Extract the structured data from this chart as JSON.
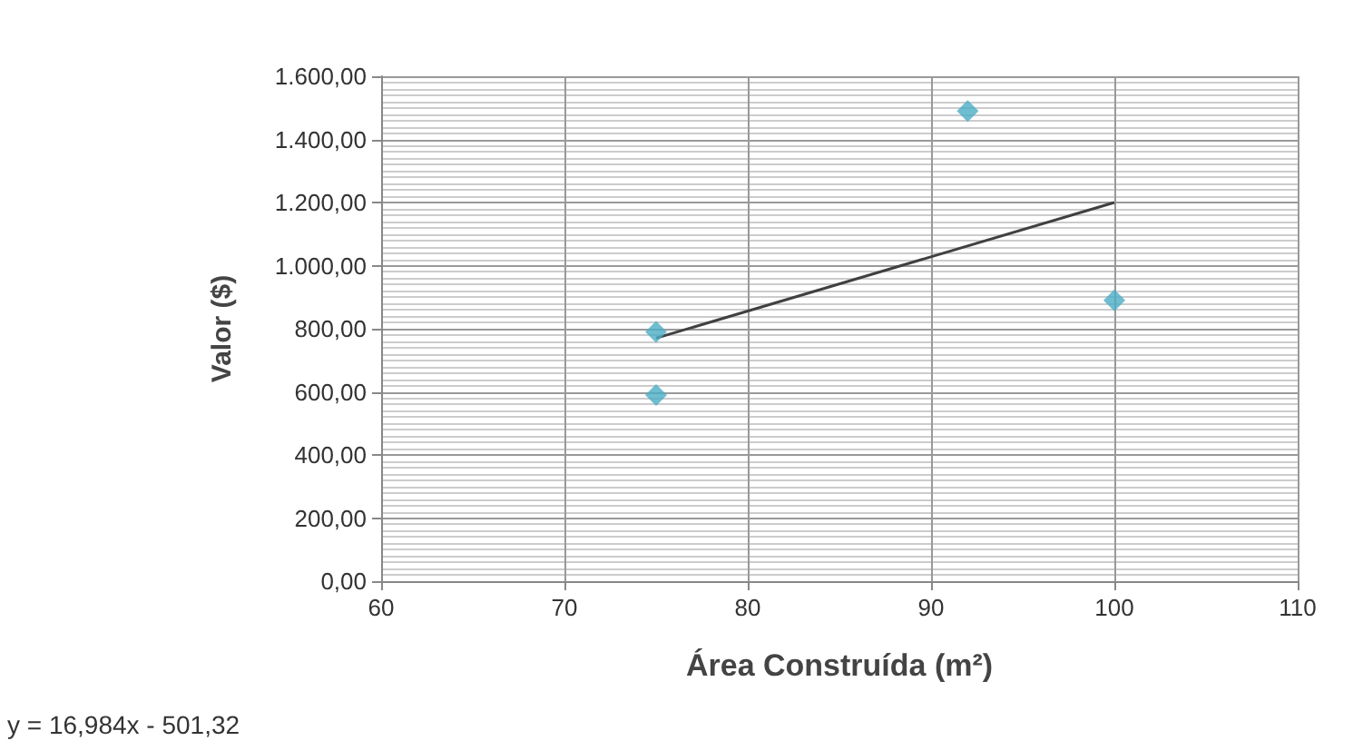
{
  "chart_data": {
    "type": "scatter",
    "xlabel": "Área Construída (m²)",
    "ylabel": "Valor ($)",
    "xlim": [
      60,
      110
    ],
    "xticks": [
      60,
      70,
      80,
      90,
      100,
      110
    ],
    "ylim": [
      0,
      1600
    ],
    "yticks": [
      {
        "value": 0,
        "label": "0,00"
      },
      {
        "value": 200,
        "label": "200,00"
      },
      {
        "value": 400,
        "label": "400,00"
      },
      {
        "value": 600,
        "label": "600,00"
      },
      {
        "value": 800,
        "label": "800,00"
      },
      {
        "value": 1000,
        "label": "1.000,00"
      },
      {
        "value": 1200,
        "label": "1.200,00"
      },
      {
        "value": 1400,
        "label": "1.400,00"
      },
      {
        "value": 1600,
        "label": "1.600,00"
      }
    ],
    "grid": true,
    "series": [
      {
        "marker": "diamond",
        "color": "#4bacc6",
        "x": [
          75,
          75,
          92,
          100
        ],
        "values": [
          790,
          590,
          1490,
          890
        ]
      },
      {
        "type": "line",
        "marker": "none",
        "color": "#404040",
        "x": [
          75,
          100
        ],
        "values": [
          770,
          1200
        ]
      }
    ],
    "annotations": [
      "y = 16,984x - 501,32"
    ]
  }
}
